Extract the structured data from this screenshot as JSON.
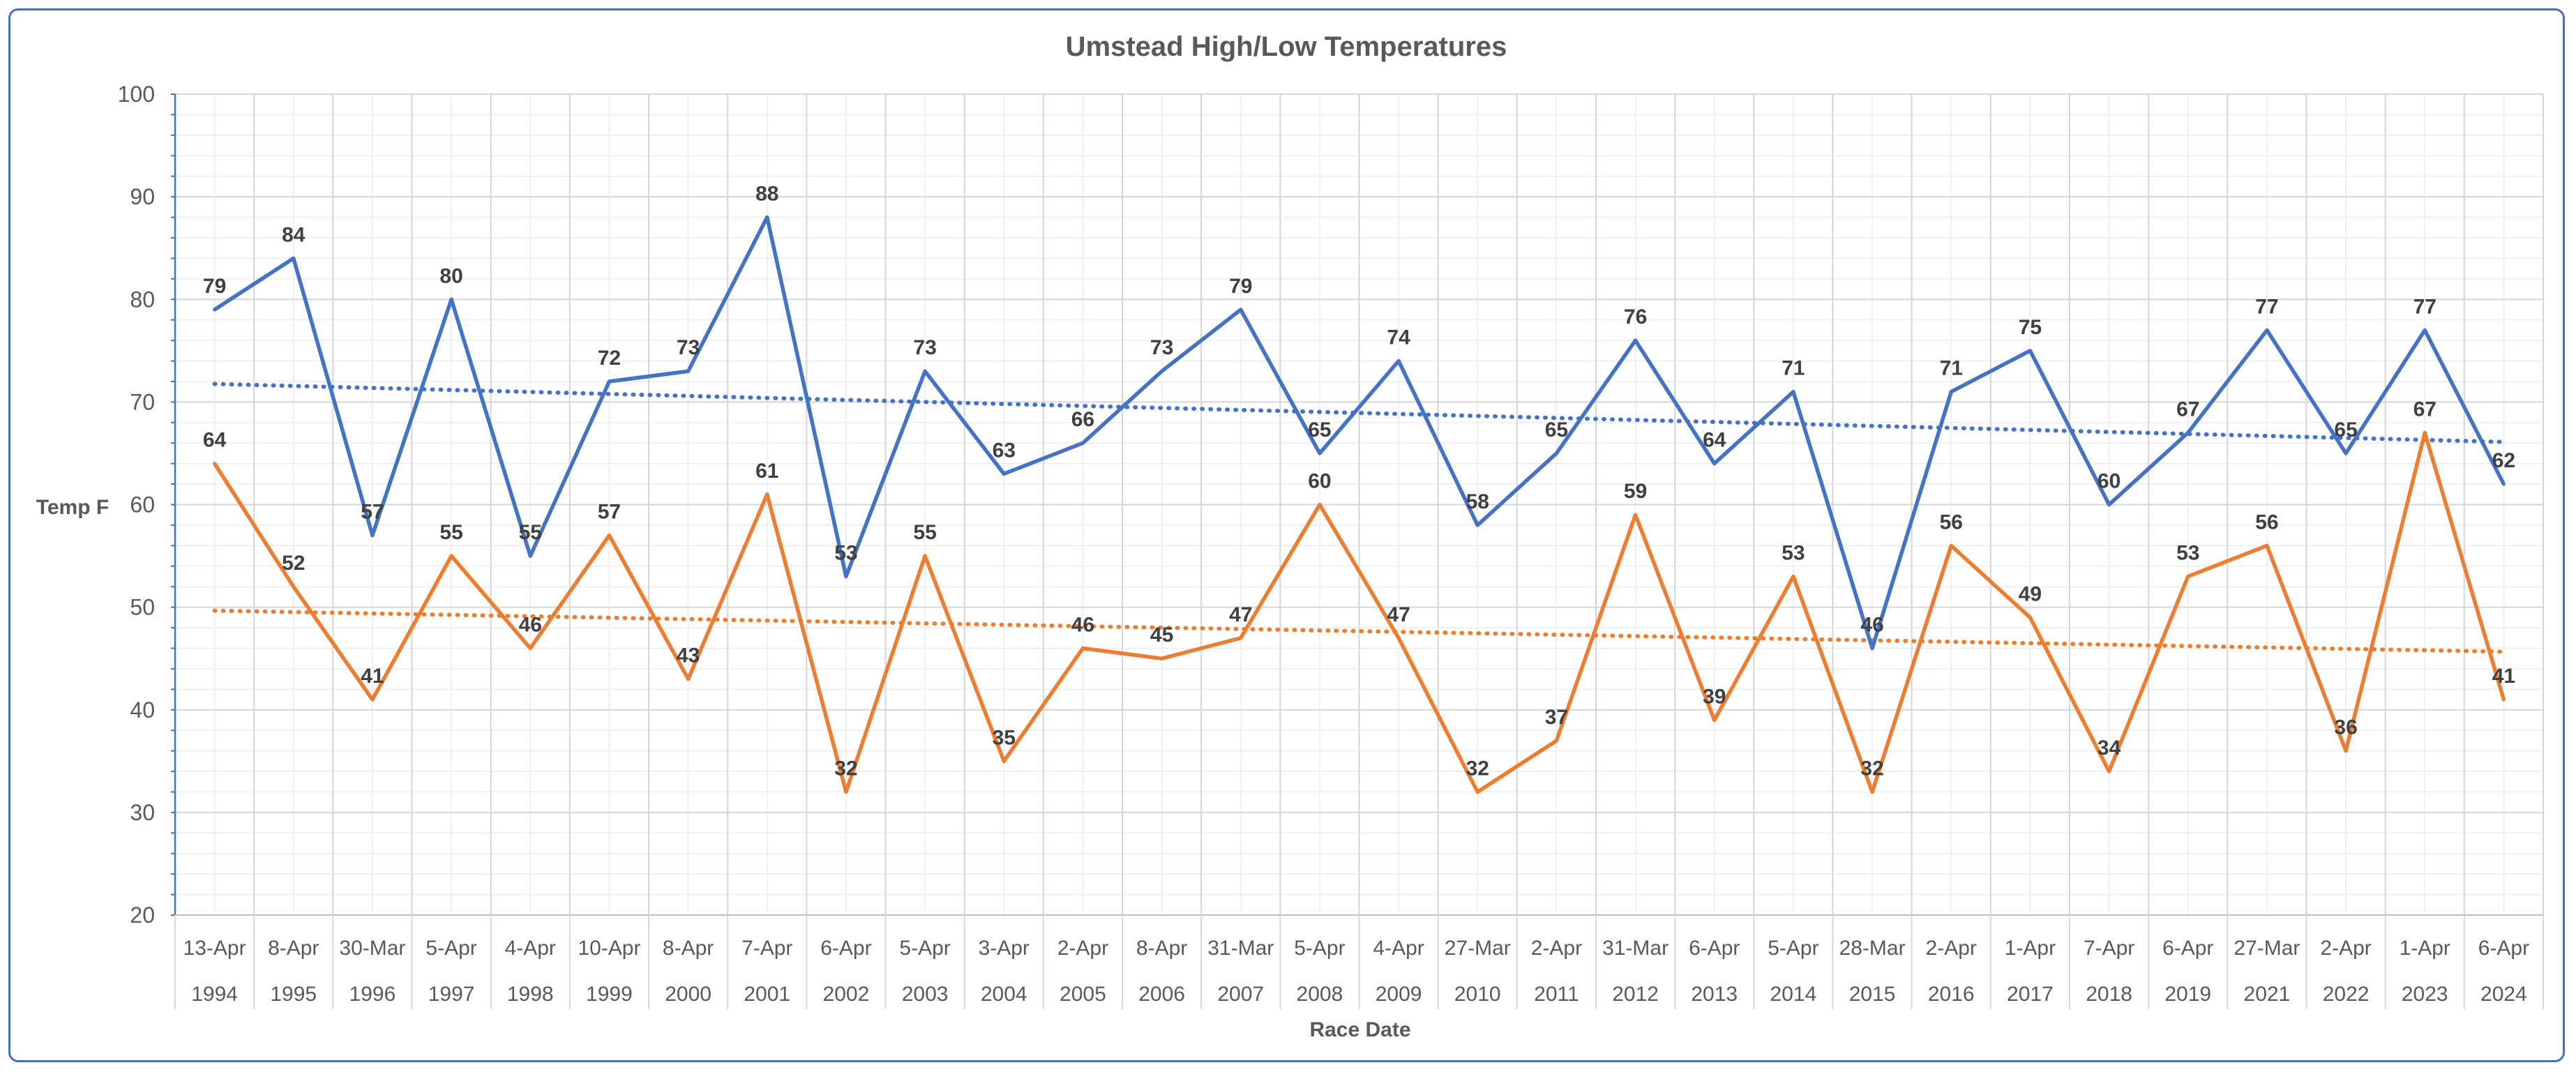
{
  "chart_data": {
    "type": "line",
    "title": "Umstead High/Low Temperatures",
    "xlabel": "Race Date",
    "ylabel": "Temp F",
    "ylim": [
      20,
      100
    ],
    "yticks": [
      20,
      30,
      40,
      50,
      60,
      70,
      80,
      90,
      100
    ],
    "grid": true,
    "legend": "none",
    "categories": [
      {
        "date": "13-Apr",
        "year": "1994"
      },
      {
        "date": "8-Apr",
        "year": "1995"
      },
      {
        "date": "30-Mar",
        "year": "1996"
      },
      {
        "date": "5-Apr",
        "year": "1997"
      },
      {
        "date": "4-Apr",
        "year": "1998"
      },
      {
        "date": "10-Apr",
        "year": "1999"
      },
      {
        "date": "8-Apr",
        "year": "2000"
      },
      {
        "date": "7-Apr",
        "year": "2001"
      },
      {
        "date": "6-Apr",
        "year": "2002"
      },
      {
        "date": "5-Apr",
        "year": "2003"
      },
      {
        "date": "3-Apr",
        "year": "2004"
      },
      {
        "date": "2-Apr",
        "year": "2005"
      },
      {
        "date": "8-Apr",
        "year": "2006"
      },
      {
        "date": "31-Mar",
        "year": "2007"
      },
      {
        "date": "5-Apr",
        "year": "2008"
      },
      {
        "date": "4-Apr",
        "year": "2009"
      },
      {
        "date": "27-Mar",
        "year": "2010"
      },
      {
        "date": "2-Apr",
        "year": "2011"
      },
      {
        "date": "31-Mar",
        "year": "2012"
      },
      {
        "date": "6-Apr",
        "year": "2013"
      },
      {
        "date": "5-Apr",
        "year": "2014"
      },
      {
        "date": "28-Mar",
        "year": "2015"
      },
      {
        "date": "2-Apr",
        "year": "2016"
      },
      {
        "date": "1-Apr",
        "year": "2017"
      },
      {
        "date": "7-Apr",
        "year": "2018"
      },
      {
        "date": "6-Apr",
        "year": "2019"
      },
      {
        "date": "27-Mar",
        "year": "2021"
      },
      {
        "date": "2-Apr",
        "year": "2022"
      },
      {
        "date": "1-Apr",
        "year": "2023"
      },
      {
        "date": "6-Apr",
        "year": "2024"
      }
    ],
    "series": [
      {
        "color": "#4472c4",
        "values": [
          79,
          84,
          57,
          80,
          55,
          72,
          73,
          88,
          53,
          73,
          63,
          66,
          73,
          79,
          65,
          74,
          58,
          65,
          76,
          64,
          71,
          46,
          71,
          75,
          60,
          67,
          77,
          65,
          77,
          62
        ],
        "trendline": "linear, dotted"
      },
      {
        "color": "#ed7d31",
        "values": [
          64,
          52,
          41,
          55,
          46,
          57,
          43,
          61,
          32,
          55,
          35,
          46,
          45,
          47,
          60,
          47,
          32,
          37,
          59,
          39,
          53,
          32,
          56,
          49,
          34,
          53,
          56,
          36,
          67,
          41
        ],
        "trendline": "linear, dotted"
      }
    ]
  }
}
